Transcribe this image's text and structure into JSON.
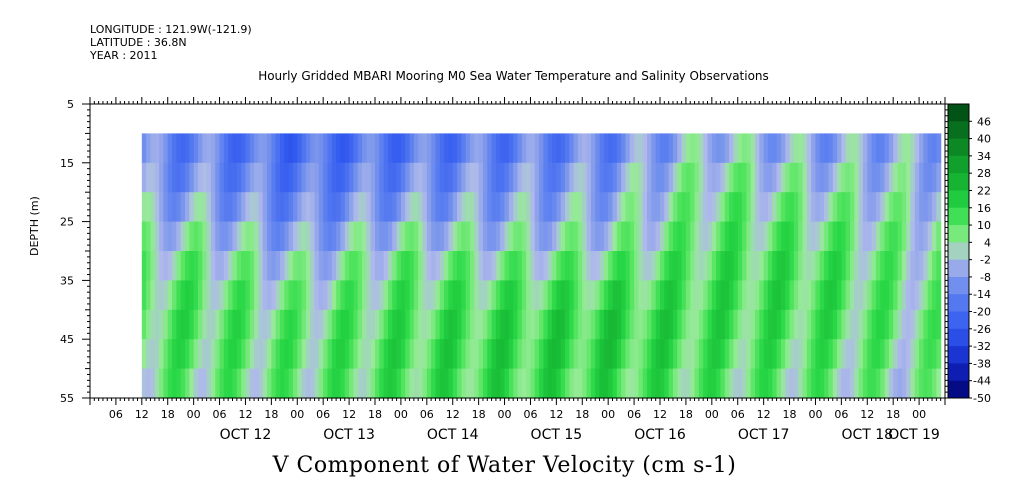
{
  "meta": {
    "longitude": "LONGITUDE : 121.9W(-121.9)",
    "latitude": "LATITUDE : 36.8N",
    "year": "YEAR : 2011"
  },
  "chart_data": {
    "type": "heatmap",
    "title": "Hourly Gridded MBARI Mooring M0 Sea Water Temperature and Salinity Observations",
    "xlabel": "",
    "ylabel": "DEPTH (m)",
    "colorbar_label": "V Component of Water Velocity (cm s-1)",
    "ylim": [
      5,
      55
    ],
    "y_reversed": true,
    "y_ticks": [
      5,
      15,
      25,
      35,
      45,
      55
    ],
    "x_range": [
      "2011-10-11T00:00",
      "2011-10-19T06:00"
    ],
    "x_hour_ticks": [
      "06",
      "12",
      "18",
      "00",
      "06",
      "12",
      "18",
      "00",
      "06",
      "12",
      "18",
      "00",
      "06",
      "12",
      "18",
      "00",
      "06",
      "12",
      "18",
      "00",
      "06",
      "12",
      "18",
      "00",
      "06",
      "12",
      "18",
      "00",
      "06",
      "12",
      "18",
      "00"
    ],
    "x_day_labels": [
      "OCT 12",
      "OCT 13",
      "OCT 14",
      "OCT 15",
      "OCT 16",
      "OCT 17",
      "OCT 18",
      "OCT 19"
    ],
    "data_time_range": [
      "2011-10-11T12:00",
      "2011-10-19T05:00"
    ],
    "data_depth_range": [
      10,
      55
    ],
    "colorbar_levels": [
      46,
      40,
      34,
      28,
      22,
      16,
      10,
      4,
      -2,
      -8,
      -14,
      -20,
      -26,
      -32,
      -38,
      -44,
      -50
    ],
    "colorbar_range": [
      -50,
      50
    ],
    "values_approx": {
      "depths": [
        10,
        15,
        20,
        25,
        30,
        35,
        40,
        45,
        50,
        55
      ],
      "days": [
        "OCT 12",
        "OCT 13",
        "OCT 14",
        "OCT 15",
        "OCT 16",
        "OCT 17",
        "OCT 18",
        "OCT 19"
      ],
      "grid": [
        [
          -14,
          -20,
          -18,
          -16,
          -14,
          -4,
          -8,
          -6
        ],
        [
          -12,
          -18,
          -14,
          -12,
          -10,
          2,
          -4,
          -4
        ],
        [
          -8,
          -14,
          -10,
          -8,
          -6,
          6,
          2,
          -2
        ],
        [
          -2,
          -10,
          -4,
          -4,
          -2,
          8,
          6,
          2
        ],
        [
          4,
          -4,
          4,
          2,
          4,
          10,
          10,
          4
        ],
        [
          8,
          2,
          8,
          8,
          10,
          12,
          12,
          4
        ],
        [
          10,
          6,
          10,
          12,
          14,
          12,
          12,
          6
        ],
        [
          10,
          8,
          12,
          14,
          16,
          12,
          10,
          6
        ],
        [
          8,
          8,
          12,
          14,
          14,
          10,
          8,
          4
        ],
        [
          6,
          6,
          10,
          12,
          12,
          8,
          6,
          2
        ]
      ]
    }
  }
}
